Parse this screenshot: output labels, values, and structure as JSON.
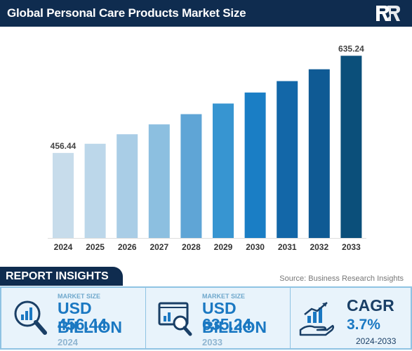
{
  "header": {
    "title": "Global Personal Care Products Market Size",
    "logo_icon": "br-logo-icon"
  },
  "chart_data": {
    "type": "bar",
    "title": "Global Personal Care Products Market Size",
    "categories": [
      "2024",
      "2025",
      "2026",
      "2027",
      "2028",
      "2029",
      "2030",
      "2031",
      "2032",
      "2033"
    ],
    "values": [
      456.44,
      473.33,
      490.84,
      509.0,
      527.83,
      547.36,
      567.61,
      588.61,
      610.39,
      635.24
    ],
    "data_labels": [
      {
        "index": 0,
        "text": "456.44"
      },
      {
        "index": 9,
        "text": "635.24"
      }
    ],
    "bar_colors": [
      "#c7dceb",
      "#bcd7ea",
      "#a9cde6",
      "#8cbfe0",
      "#5fa5d6",
      "#3795d1",
      "#1a7ec5",
      "#1367a8",
      "#0f5a94",
      "#0b4f7a"
    ],
    "xlabel": "",
    "ylabel": "",
    "ylim": [
      300,
      650
    ],
    "grid": false,
    "legend": "none"
  },
  "insights": {
    "heading": "REPORT INSIGHTS",
    "source": "Source: Business Research Insights",
    "cards": [
      {
        "label": "MARKET SIZE",
        "value_line1": "USD 456.44",
        "value_line2": "BILLION",
        "year": "2024",
        "icon": "search-chart-icon"
      },
      {
        "label": "MARKET SIZE",
        "value_line1": "USD 635.24",
        "value_line2": "BILLION",
        "year": "2033",
        "icon": "dashboard-magnifier-icon"
      },
      {
        "title": "CAGR",
        "value": "3.7%",
        "period": "2024-2033",
        "icon": "growth-hand-icon"
      }
    ]
  },
  "colors": {
    "navy": "#0f2c4f",
    "accent": "#1a78c2",
    "card_bg": "#e8f3fb"
  }
}
